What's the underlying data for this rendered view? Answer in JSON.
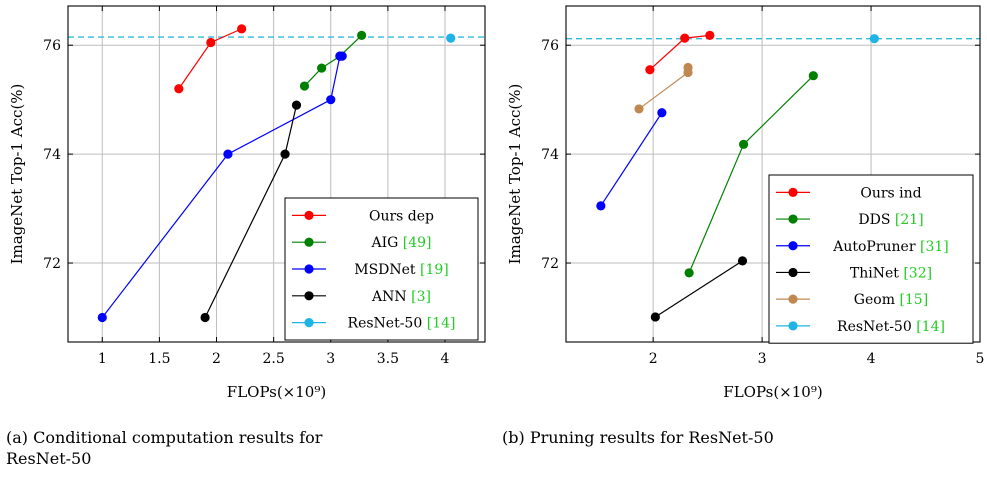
{
  "captions": {
    "a": "(a) Conditional computation results for ResNet-50",
    "b": "(b) Pruning results for ResNet-50"
  },
  "chart_data": [
    {
      "type": "line",
      "xlabel": "FLOPs(×10⁹)",
      "ylabel": "ImageNet Top-1 Acc(%)",
      "xlim": [
        0.7,
        4.35
      ],
      "ylim": [
        70.55,
        76.72
      ],
      "xticks": [
        1,
        1.5,
        2,
        2.5,
        3,
        3.5,
        4
      ],
      "yticks": [
        72,
        74,
        76
      ],
      "grid": true,
      "legend_position": "bottom-right",
      "reference_line": {
        "y": 76.15,
        "color": "#33bbdd",
        "style": "dashed"
      },
      "series": [
        {
          "name": "Ours dep",
          "cite": "",
          "color": "#ff0000",
          "x": [
            1.67,
            1.95,
            2.22
          ],
          "y": [
            75.2,
            76.05,
            76.3
          ]
        },
        {
          "name": "AIG",
          "cite": "[49]",
          "color": "#008000",
          "x": [
            2.77,
            2.92,
            3.08,
            3.27
          ],
          "y": [
            75.25,
            75.58,
            75.8,
            76.18
          ]
        },
        {
          "name": "MSDNet",
          "cite": "[19]",
          "color": "#0000ff",
          "x": [
            1.0,
            2.1,
            3.0,
            3.08,
            3.1
          ],
          "y": [
            71.0,
            74.0,
            75.0,
            75.8,
            75.8
          ]
        },
        {
          "name": "ANN",
          "cite": "[3]",
          "color": "#000000",
          "x": [
            1.9,
            2.6,
            2.7
          ],
          "y": [
            71.0,
            74.0,
            74.9
          ]
        },
        {
          "name": "ResNet-50",
          "cite": "[14]",
          "color": "#1eb4e6",
          "x": [
            4.05
          ],
          "y": [
            76.13
          ]
        }
      ]
    },
    {
      "type": "line",
      "xlabel": "FLOPs(×10⁹)",
      "ylabel": "ImageNet Top-1 Acc(%)",
      "xlim": [
        1.2,
        5.0
      ],
      "ylim": [
        70.55,
        76.72
      ],
      "xticks": [
        2,
        3,
        4,
        5
      ],
      "yticks": [
        72,
        74,
        76
      ],
      "grid": true,
      "legend_position": "bottom-right",
      "reference_line": {
        "y": 76.12,
        "color": "#33bbdd",
        "style": "dashed"
      },
      "series": [
        {
          "name": "Ours ind",
          "cite": "",
          "color": "#ff0000",
          "x": [
            1.97,
            2.29,
            2.52
          ],
          "y": [
            75.55,
            76.13,
            76.18
          ]
        },
        {
          "name": "DDS",
          "cite": "[21]",
          "color": "#008000",
          "x": [
            2.33,
            2.83,
            3.47
          ],
          "y": [
            71.82,
            74.18,
            75.44
          ]
        },
        {
          "name": "AutoPruner",
          "cite": "[31]",
          "color": "#0000ff",
          "x": [
            1.52,
            2.08
          ],
          "y": [
            73.05,
            74.76
          ]
        },
        {
          "name": "ThiNet",
          "cite": "[32]",
          "color": "#000000",
          "x": [
            2.02,
            2.82
          ],
          "y": [
            71.01,
            72.04
          ]
        },
        {
          "name": "Geom",
          "cite": "[15]",
          "color": "#c08850",
          "x": [
            1.87,
            2.32,
            2.32
          ],
          "y": [
            74.83,
            75.5,
            75.59
          ]
        },
        {
          "name": "ResNet-50",
          "cite": "[14]",
          "color": "#1eb4e6",
          "x": [
            4.03
          ],
          "y": [
            76.12
          ]
        }
      ]
    }
  ]
}
